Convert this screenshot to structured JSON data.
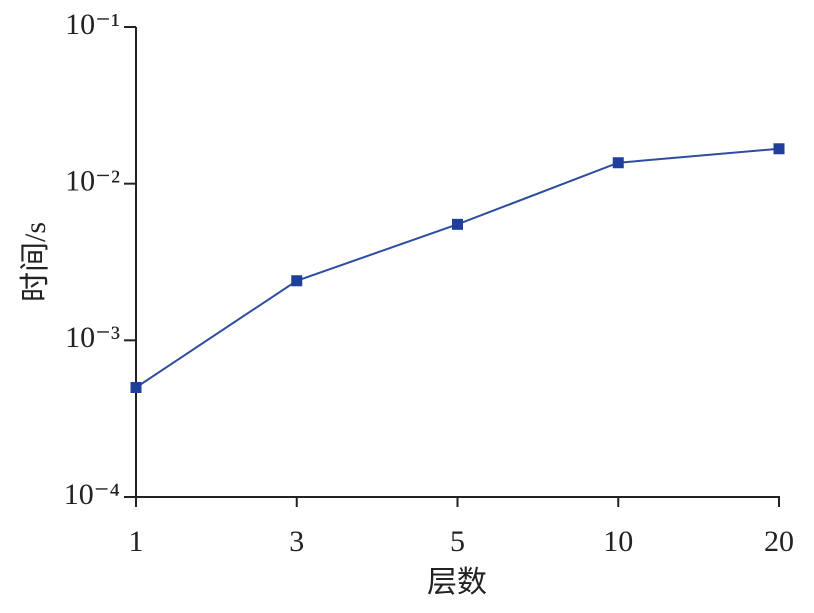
{
  "chart_data": {
    "type": "line",
    "xlabel": "层数",
    "ylabel": "时间/s",
    "categories": [
      "1",
      "3",
      "5",
      "10",
      "20"
    ],
    "series": [
      {
        "color": "#2f4da0",
        "values": [
          0.0005,
          0.0024,
          0.0055,
          0.0136,
          0.0167
        ]
      }
    ],
    "ylog": true,
    "ylim": [
      0.0001,
      0.1
    ],
    "yticks": [
      {
        "value": 0.0001,
        "label": "10⁻⁴"
      },
      {
        "value": 0.001,
        "label": "10⁻³"
      },
      {
        "value": 0.01,
        "label": "10⁻²"
      },
      {
        "value": 0.1,
        "label": "10⁻¹"
      }
    ]
  }
}
